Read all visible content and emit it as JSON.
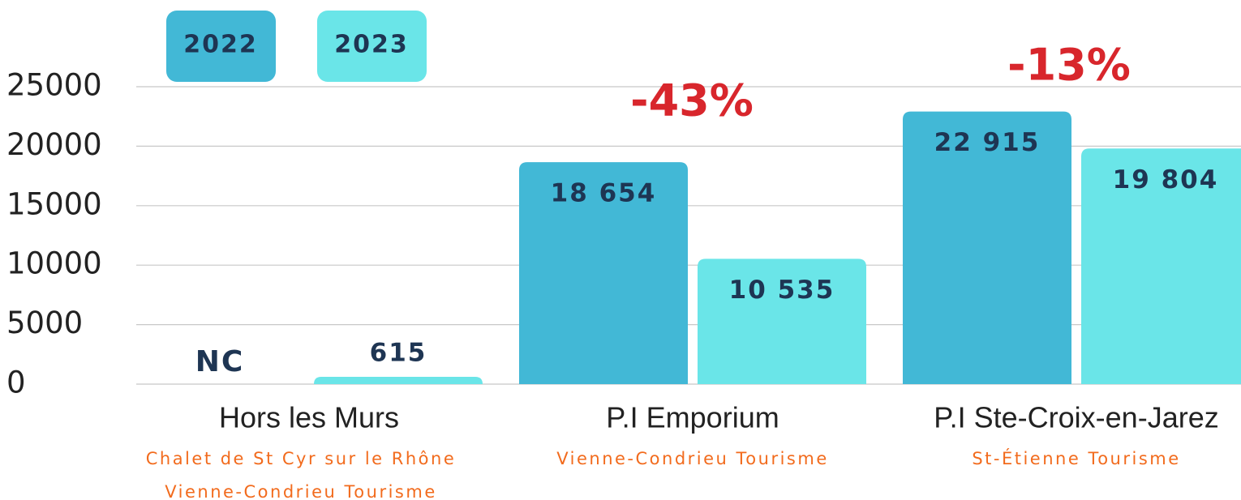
{
  "chart_data": {
    "type": "bar",
    "categories": [
      "Hors les Murs",
      "P.I Emporium",
      "P.I Ste-Croix-en-Jarez"
    ],
    "sublabels": [
      [
        "Chalet de St Cyr sur le Rhône",
        "Vienne-Condrieu Tourisme"
      ],
      [
        "Vienne-Condrieu Tourisme"
      ],
      [
        "St-Étienne Tourisme"
      ]
    ],
    "series": [
      {
        "name": "2022",
        "color": "#42b8d6",
        "values": [
          null,
          18654,
          22915
        ],
        "value_labels": [
          "NC",
          "18 654",
          "22 915"
        ]
      },
      {
        "name": "2023",
        "color": "#6ae5e8",
        "values": [
          615,
          10535,
          19804
        ],
        "value_labels": [
          "615",
          "10 535",
          "19 804"
        ]
      }
    ],
    "annotations": [
      "-43%",
      "-13%"
    ],
    "ylim": [
      0,
      25000
    ],
    "yticks": [
      0,
      5000,
      10000,
      15000,
      20000,
      25000
    ],
    "grid": true
  }
}
